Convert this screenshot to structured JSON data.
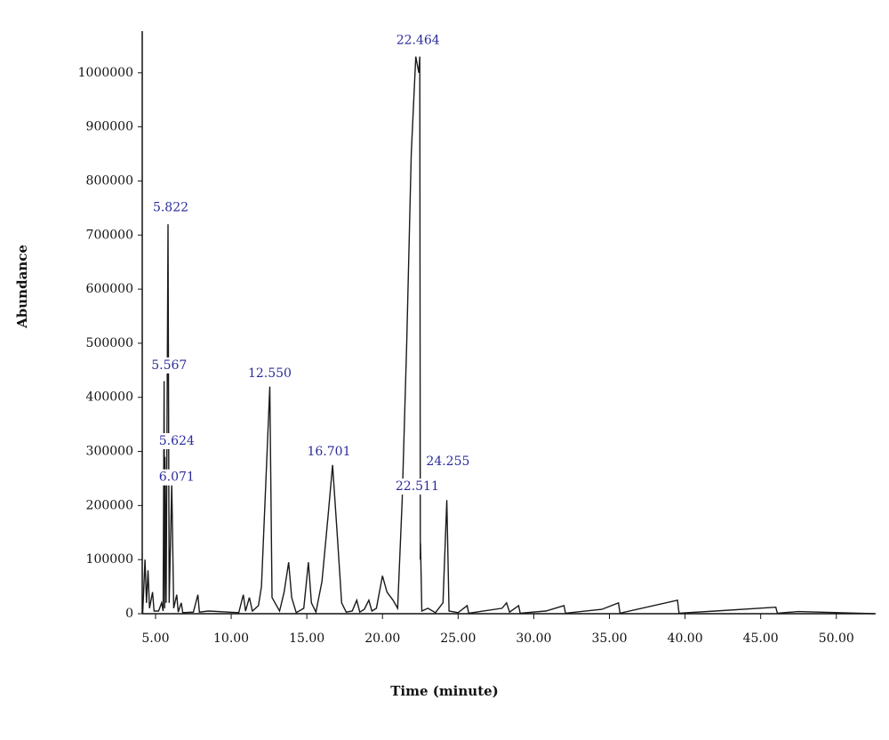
{
  "chart_data": {
    "type": "line",
    "xlabel": "Time (minute)",
    "ylabel": "Abundance",
    "color": "#1a1a1a",
    "label_color": "#2b2b9c",
    "xlim": [
      4.12,
      52.6
    ],
    "ylim": [
      0,
      1077000
    ],
    "xticks": [
      {
        "value": 5,
        "label": "5.00"
      },
      {
        "value": 10,
        "label": "10.00"
      },
      {
        "value": 15,
        "label": "15.00"
      },
      {
        "value": 20,
        "label": "20.00"
      },
      {
        "value": 25,
        "label": "25.00"
      },
      {
        "value": 30,
        "label": "30.00"
      },
      {
        "value": 35,
        "label": "35.00"
      },
      {
        "value": 40,
        "label": "40.00"
      },
      {
        "value": 45,
        "label": "45.00"
      },
      {
        "value": 50,
        "label": "50.00"
      }
    ],
    "yticks": [
      0,
      100000,
      200000,
      300000,
      400000,
      500000,
      600000,
      700000,
      800000,
      900000,
      1000000
    ],
    "x": [
      4.15,
      4.3,
      4.4,
      4.5,
      4.6,
      4.8,
      4.9,
      5.2,
      5.4,
      5.5,
      5.567,
      5.6,
      5.624,
      5.7,
      5.822,
      5.9,
      6.071,
      6.2,
      6.4,
      6.5,
      6.7,
      6.8,
      7.5,
      7.8,
      7.9,
      8.5,
      10.5,
      10.8,
      10.95,
      11.2,
      11.4,
      11.8,
      12.0,
      12.3,
      12.55,
      12.7,
      13.2,
      13.5,
      13.8,
      14.0,
      14.3,
      14.8,
      15.1,
      15.3,
      15.6,
      16.0,
      16.4,
      16.701,
      17.0,
      17.3,
      17.6,
      18.0,
      18.3,
      18.5,
      18.8,
      19.1,
      19.3,
      19.6,
      20.0,
      20.3,
      20.7,
      21.0,
      21.3,
      21.6,
      21.9,
      22.2,
      22.4,
      22.464,
      22.5,
      22.511,
      22.6,
      23.0,
      23.5,
      24.0,
      24.255,
      24.4,
      25.0,
      25.6,
      25.7,
      27.9,
      28.2,
      28.4,
      29.0,
      29.1,
      30.8,
      32.0,
      32.1,
      34.5,
      35.6,
      35.7,
      39.5,
      39.6,
      42.0,
      46.0,
      46.1,
      47.5,
      52.5
    ],
    "values": [
      0,
      100000,
      20000,
      80000,
      10000,
      40000,
      5000,
      5000,
      20000,
      5000,
      430000,
      10000,
      290000,
      20000,
      720000,
      20000,
      240000,
      10000,
      35000,
      3000,
      20000,
      2000,
      3000,
      35000,
      3000,
      5000,
      2000,
      35000,
      5000,
      30000,
      5000,
      15000,
      50000,
      250000,
      420000,
      30000,
      5000,
      40000,
      95000,
      30000,
      2000,
      10000,
      95000,
      20000,
      3000,
      60000,
      180000,
      275000,
      150000,
      20000,
      3000,
      5000,
      25000,
      3000,
      8000,
      25000,
      5000,
      10000,
      70000,
      40000,
      25000,
      10000,
      210000,
      500000,
      850000,
      1030000,
      1000000,
      1030000,
      100000,
      130000,
      5000,
      10000,
      2000,
      20000,
      210000,
      5000,
      2000,
      15000,
      1000,
      10000,
      20000,
      3000,
      15000,
      1000,
      5000,
      15000,
      1000,
      8000,
      20000,
      1000,
      25000,
      1000,
      5000,
      12000,
      1000,
      4000,
      0
    ],
    "annotations": [
      {
        "text": "22.464",
        "x": 22.35,
        "y": 1060000
      },
      {
        "text": "5.822",
        "x": 6.0,
        "y": 751000
      },
      {
        "text": "5.567",
        "x": 5.9,
        "y": 459000
      },
      {
        "text": "12.550",
        "x": 12.55,
        "y": 444000
      },
      {
        "text": "5.624",
        "x": 6.4,
        "y": 319000
      },
      {
        "text": "16.701",
        "x": 16.46,
        "y": 299000
      },
      {
        "text": "24.255",
        "x": 24.33,
        "y": 281000
      },
      {
        "text": "6.071",
        "x": 6.4,
        "y": 252000
      },
      {
        "text": "22.511",
        "x": 22.3,
        "y": 235000
      }
    ]
  }
}
